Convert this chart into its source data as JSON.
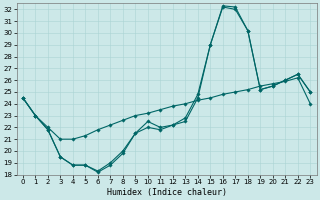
{
  "title": "",
  "xlabel": "Humidex (Indice chaleur)",
  "bg_color": "#cce8e8",
  "grid_color": "#aad4d4",
  "line_color": "#006666",
  "xlim": [
    -0.5,
    23.5
  ],
  "ylim": [
    18,
    32.5
  ],
  "xticks": [
    0,
    1,
    2,
    3,
    4,
    5,
    6,
    7,
    8,
    9,
    10,
    11,
    12,
    13,
    14,
    15,
    16,
    17,
    18,
    19,
    20,
    21,
    22,
    23
  ],
  "yticks": [
    18,
    19,
    20,
    21,
    22,
    23,
    24,
    25,
    26,
    27,
    28,
    29,
    30,
    31,
    32
  ],
  "line1_x": [
    0,
    1,
    2,
    3,
    4,
    5,
    6,
    7,
    8,
    9,
    10,
    11,
    12,
    13,
    14,
    15,
    16,
    17,
    18,
    19,
    20,
    21,
    22,
    23
  ],
  "line1_y": [
    24.5,
    23.0,
    21.8,
    19.5,
    18.8,
    18.8,
    18.3,
    19.0,
    20.0,
    21.5,
    22.0,
    21.8,
    22.2,
    22.5,
    24.5,
    29.0,
    32.2,
    32.0,
    30.2,
    25.2,
    25.5,
    26.0,
    26.5,
    25.0
  ],
  "line2_x": [
    0,
    1,
    2,
    3,
    4,
    5,
    6,
    7,
    8,
    9,
    10,
    11,
    12,
    13,
    14,
    15,
    16,
    17,
    18,
    19,
    20,
    21,
    22,
    23
  ],
  "line2_y": [
    24.5,
    23.0,
    22.0,
    21.0,
    21.0,
    21.3,
    21.8,
    22.2,
    22.6,
    23.0,
    23.2,
    23.5,
    23.8,
    24.0,
    24.3,
    24.5,
    24.8,
    25.0,
    25.2,
    25.5,
    25.7,
    25.9,
    26.2,
    24.0
  ],
  "line3_x": [
    0,
    1,
    2,
    3,
    4,
    5,
    6,
    7,
    8,
    9,
    10,
    11,
    12,
    13,
    14,
    15,
    16,
    17,
    18,
    19,
    20,
    21,
    22,
    23
  ],
  "line3_y": [
    24.5,
    23.0,
    21.8,
    19.5,
    18.8,
    18.8,
    18.2,
    18.8,
    19.8,
    21.5,
    22.5,
    22.0,
    22.2,
    22.8,
    24.8,
    29.0,
    32.3,
    32.2,
    30.2,
    25.2,
    25.5,
    26.0,
    26.5,
    25.0
  ],
  "marker_size": 1.8,
  "line_width": 0.8,
  "tick_fontsize": 5,
  "xlabel_fontsize": 6
}
